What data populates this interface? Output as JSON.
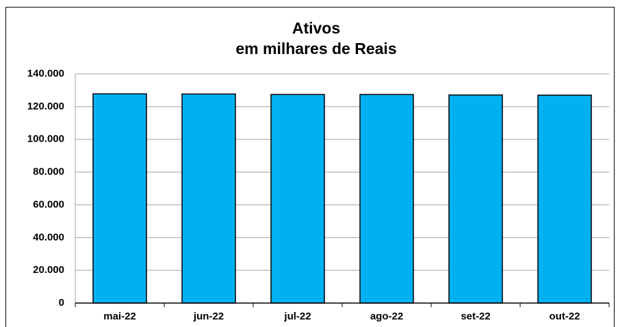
{
  "chart_data": {
    "type": "bar",
    "title": "Ativos",
    "subtitle": "em milhares de Reais",
    "categories": [
      "mai-22",
      "jun-22",
      "jul-22",
      "ago-22",
      "set-22",
      "out-22"
    ],
    "values": [
      127800,
      127700,
      127400,
      127400,
      127100,
      127000
    ],
    "color": "#00b0f0",
    "ylim": [
      0,
      140000
    ],
    "yticks": [
      0,
      {
        "value": 20000,
        "label": "20.000"
      },
      {
        "value": 40000,
        "label": "40.000"
      },
      {
        "value": 60000,
        "label": "60.000"
      },
      {
        "value": 80000,
        "label": "80.000"
      },
      {
        "value": 100000,
        "label": "100.000"
      },
      {
        "value": 120000,
        "label": "120.000"
      },
      {
        "value": 140000,
        "label": "140.000"
      }
    ],
    "grid": true
  }
}
